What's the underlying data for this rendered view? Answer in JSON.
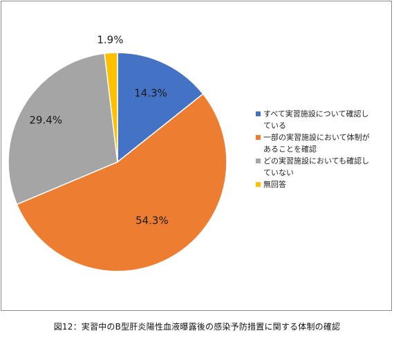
{
  "chart_data": {
    "type": "pie",
    "categories": [
      "すべて実習施設について確認している",
      "一部の実習施設において体制があることを確認",
      "どの実習施設においても確認していない",
      "無回答"
    ],
    "values": [
      14.3,
      54.3,
      29.4,
      1.9
    ],
    "data_labels": [
      "14.3%",
      "54.3%",
      "29.4%",
      "1.9%"
    ],
    "colors": [
      "#4472c4",
      "#ed7d31",
      "#a5a5a5",
      "#ffc000"
    ],
    "legend_position": "right",
    "start_angle_deg": 0,
    "direction": "clockwise"
  },
  "legend": {
    "items": [
      {
        "line1": "すべて実習施設について確認し",
        "line2": "ている"
      },
      {
        "line1": "一部の実習施設において体制が",
        "line2": "あることを確認"
      },
      {
        "line1": "どの実習施設においても確認し",
        "line2": "ていない"
      },
      {
        "line1": "無回答",
        "line2": ""
      }
    ]
  },
  "caption": "図12：実習中のB型肝炎陽性血液曝露後の感染予防措置に関する体制の確認"
}
